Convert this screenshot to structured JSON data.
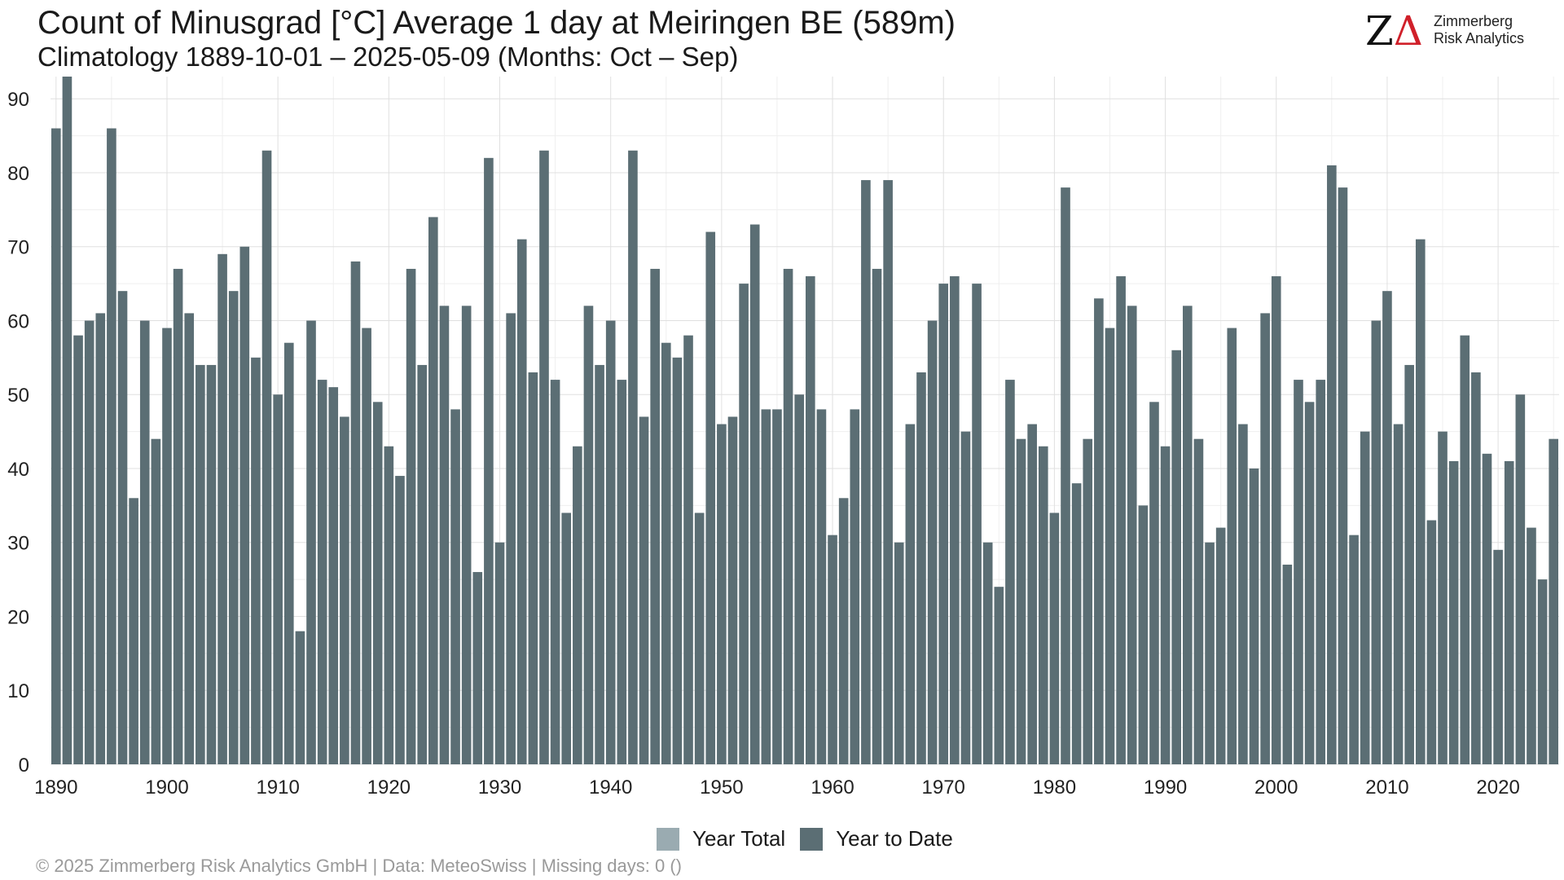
{
  "header": {
    "title": "Count of Minusgrad [°C] Average 1 day at Meiringen  BE (589m)",
    "subtitle": "Climatology 1889-10-01 – 2025-05-09 (Months: Oct – Sep)"
  },
  "logo": {
    "mark_z": "Z",
    "mark_delta": "Δ",
    "line1": "Zimmerberg",
    "line2": "Risk Analytics"
  },
  "legend": {
    "items": [
      {
        "label": "Year Total",
        "color": "#9aabb1"
      },
      {
        "label": "Year to Date",
        "color": "#5b6e74"
      }
    ]
  },
  "footer": {
    "text": "©  2025 Zimmerberg Risk Analytics GmbH | Data: MeteoSwiss | Missing days: 0 ()"
  },
  "chart_data": {
    "type": "bar",
    "x_start": 1890,
    "x_end": 2025,
    "xticks": [
      1890,
      1900,
      1910,
      1920,
      1930,
      1940,
      1950,
      1960,
      1970,
      1980,
      1990,
      2000,
      2010,
      2020
    ],
    "yticks": [
      0,
      10,
      20,
      30,
      40,
      50,
      60,
      70,
      80,
      90
    ],
    "ylim": [
      0,
      93
    ],
    "grid": true,
    "legend_position": "bottom",
    "bar_color": "#5b6e74",
    "series_name": "Year to Date",
    "values": [
      86,
      93,
      58,
      60,
      61,
      86,
      64,
      36,
      60,
      44,
      59,
      67,
      61,
      54,
      54,
      69,
      64,
      70,
      55,
      83,
      50,
      57,
      18,
      60,
      52,
      51,
      47,
      68,
      59,
      49,
      43,
      39,
      67,
      54,
      74,
      62,
      48,
      62,
      26,
      82,
      30,
      61,
      71,
      53,
      83,
      52,
      34,
      43,
      62,
      54,
      60,
      52,
      83,
      47,
      67,
      57,
      55,
      58,
      34,
      72,
      46,
      47,
      65,
      73,
      48,
      48,
      67,
      50,
      66,
      48,
      31,
      36,
      48,
      79,
      67,
      79,
      30,
      46,
      53,
      60,
      65,
      66,
      45,
      65,
      30,
      24,
      52,
      44,
      46,
      43,
      34,
      78,
      38,
      44,
      63,
      59,
      66,
      62,
      35,
      49,
      43,
      56,
      62,
      44,
      30,
      32,
      59,
      46,
      40,
      61,
      66,
      27,
      52,
      49,
      52,
      81,
      78,
      31,
      45,
      60,
      64,
      46,
      54,
      71,
      33,
      45,
      41,
      58,
      53,
      42,
      29,
      41,
      50,
      32,
      25,
      44
    ]
  }
}
